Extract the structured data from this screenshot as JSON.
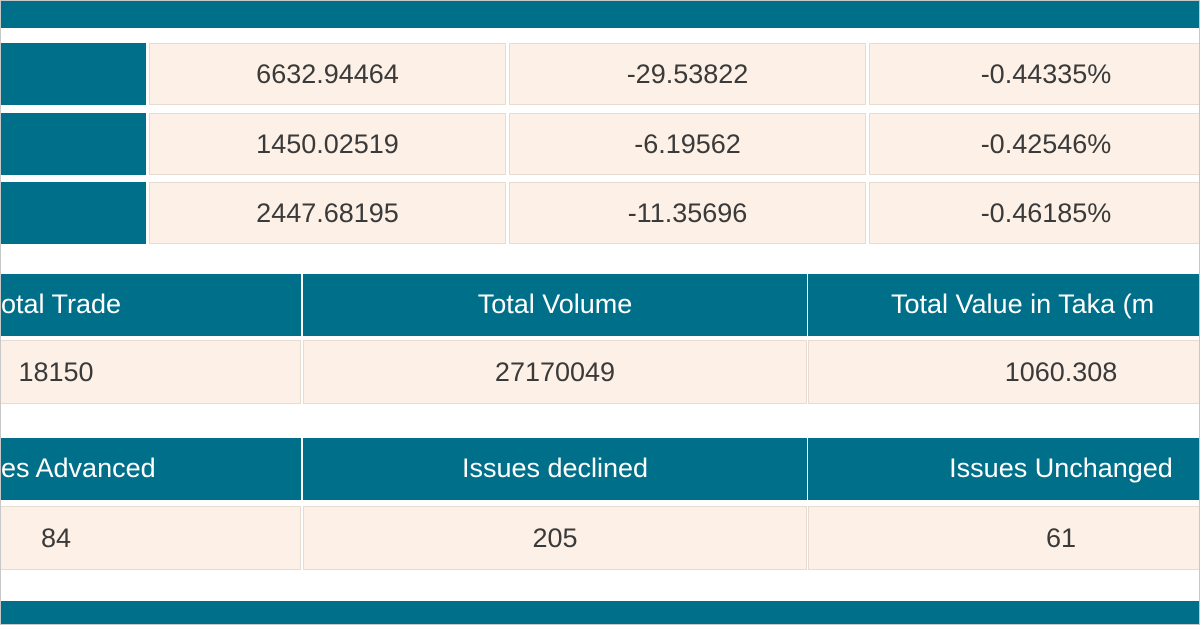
{
  "index_table": {
    "rows": [
      [
        "6632.94464",
        "-29.53822",
        "-0.44335%"
      ],
      [
        "1450.02519",
        "-6.19562",
        "-0.42546%"
      ],
      [
        "2447.68195",
        "-11.35696",
        "-0.46185%"
      ]
    ]
  },
  "summary_table": {
    "headers": [
      "otal Trade",
      "Total Volume",
      "Total Value in Taka (m"
    ],
    "values": [
      "18150",
      "27170049",
      "1060.308"
    ]
  },
  "issues_table": {
    "headers": [
      "es Advanced",
      "Issues declined",
      "Issues Unchanged"
    ],
    "values": [
      "84",
      "205",
      "61"
    ]
  }
}
